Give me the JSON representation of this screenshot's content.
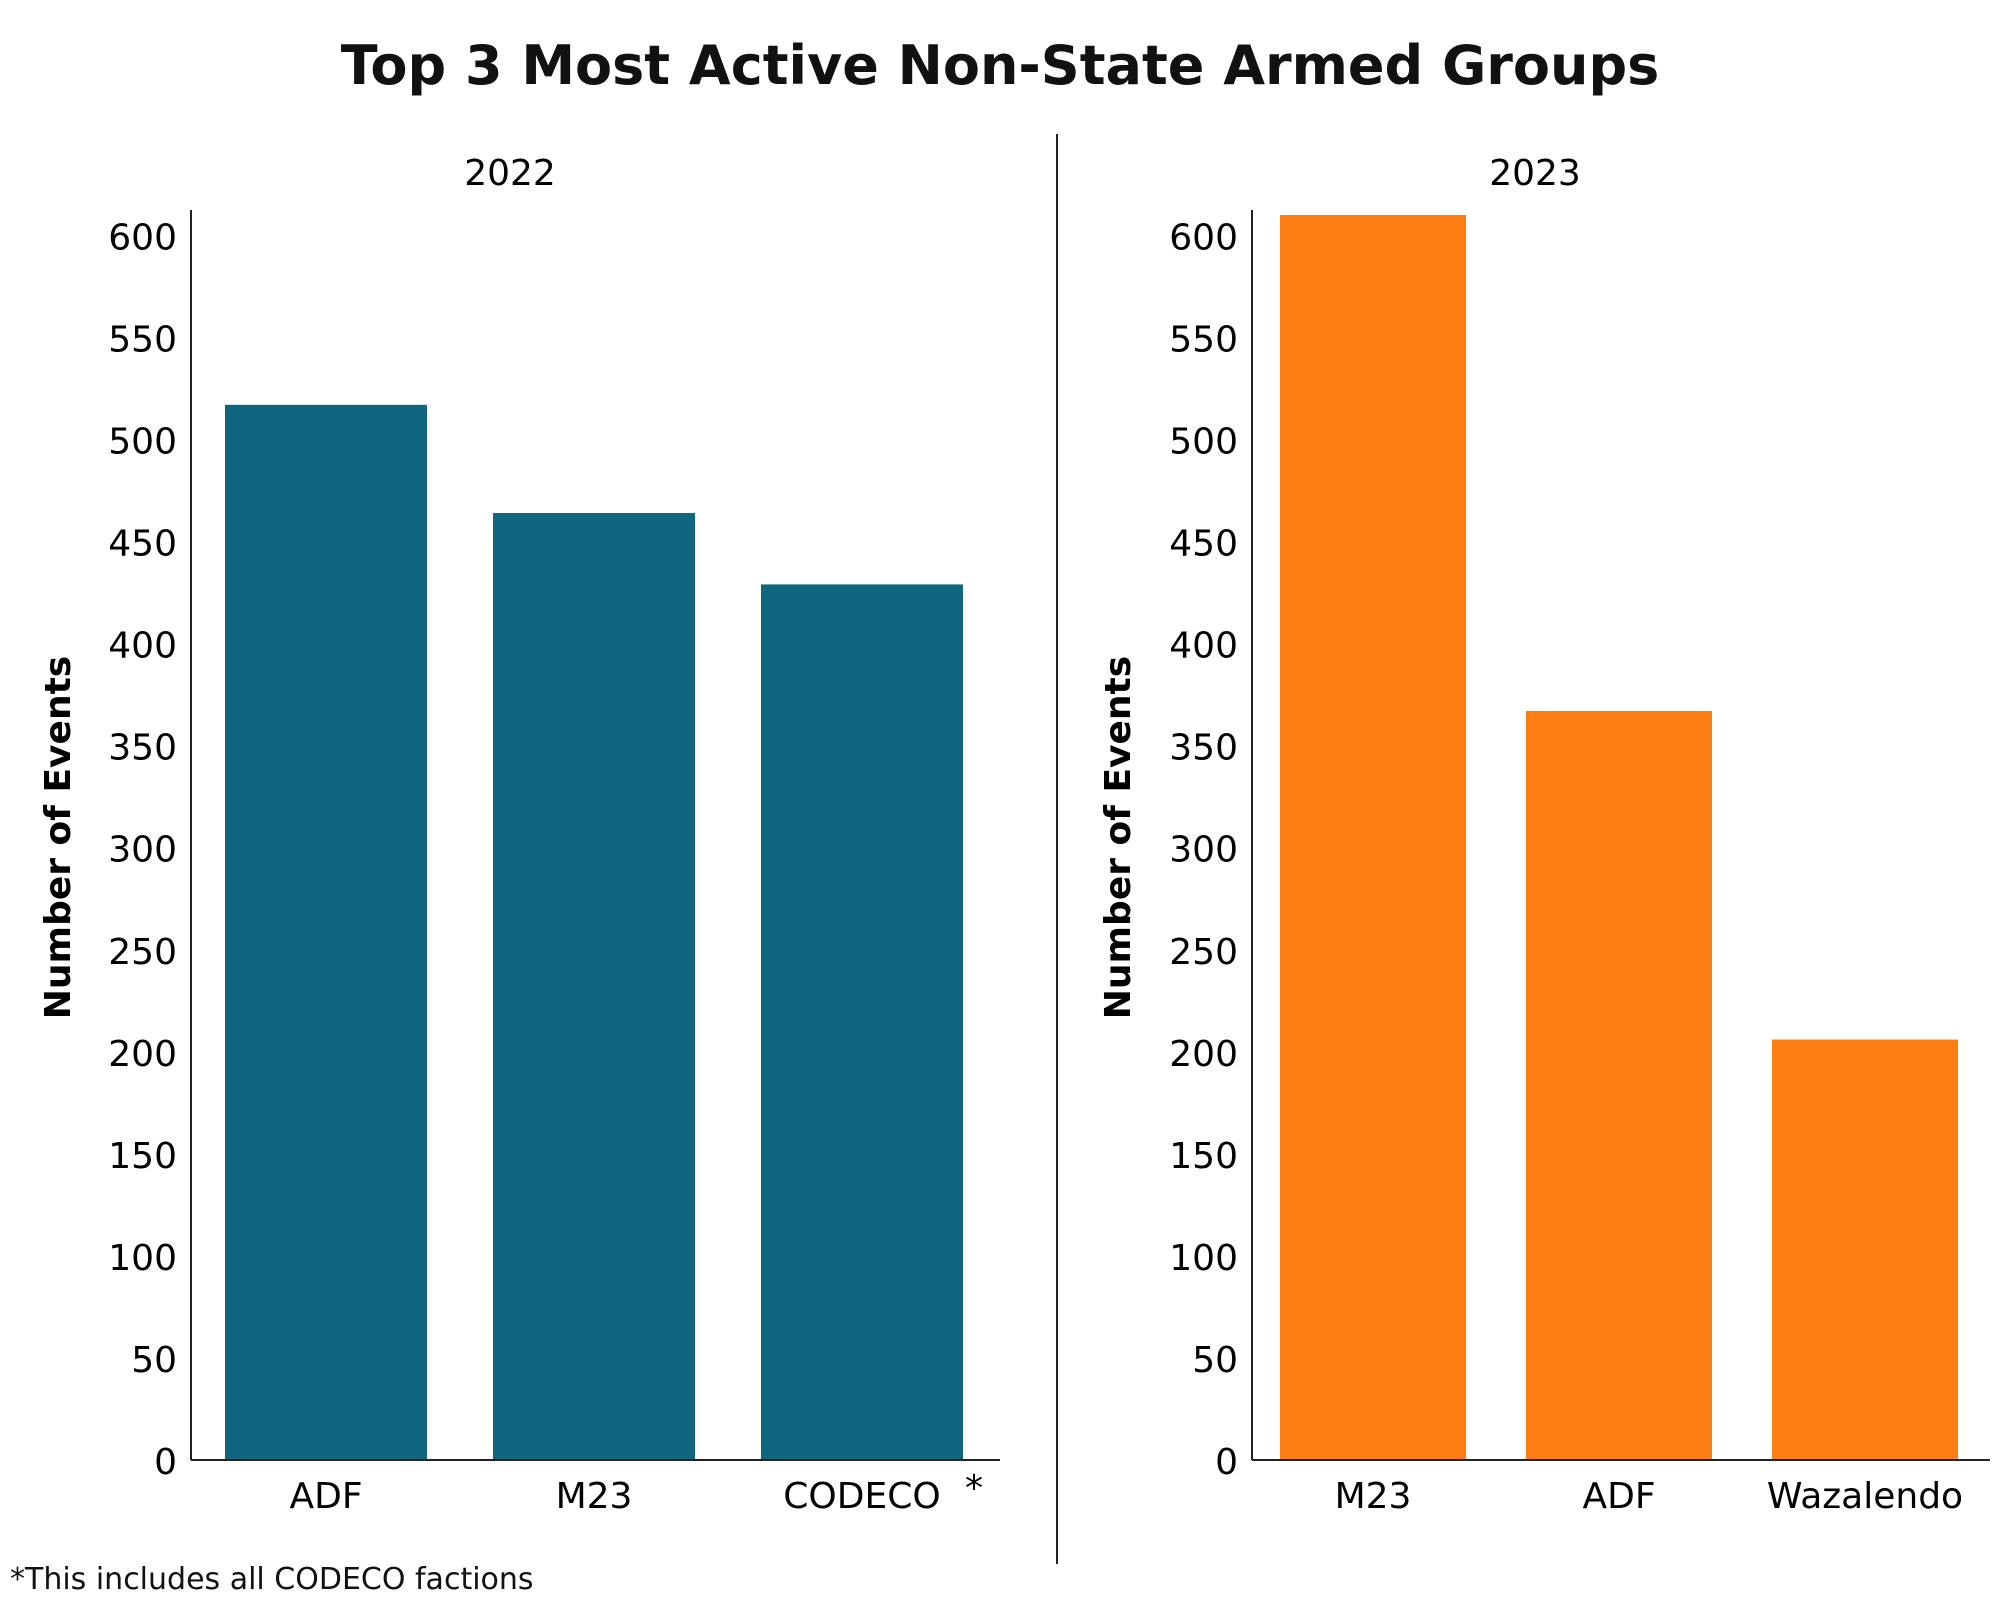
{
  "title": "Top 3 Most Active Non-State Armed Groups",
  "footnote": "*This includes all CODECO factions",
  "chart_data": [
    {
      "type": "bar",
      "title": "2022",
      "ylabel": "Number of Events",
      "categories": [
        "ADF",
        "M23",
        "CODECO"
      ],
      "category_marks": [
        "",
        "",
        "*"
      ],
      "values": [
        517,
        464,
        429
      ],
      "ylim": [
        0,
        610
      ],
      "yticks": [
        0,
        50,
        100,
        150,
        200,
        250,
        300,
        350,
        400,
        450,
        500,
        550,
        600
      ],
      "color": "#10667e",
      "grid": false
    },
    {
      "type": "bar",
      "title": "2023",
      "ylabel": "Number of Events",
      "categories": [
        "M23",
        "ADF",
        "Wazalendo"
      ],
      "category_marks": [
        "",
        "",
        ""
      ],
      "values": [
        612,
        367,
        206
      ],
      "ylim": [
        0,
        610
      ],
      "yticks": [
        0,
        50,
        100,
        150,
        200,
        250,
        300,
        350,
        400,
        450,
        500,
        550,
        600
      ],
      "color": "#fd7e12",
      "grid": false
    }
  ]
}
